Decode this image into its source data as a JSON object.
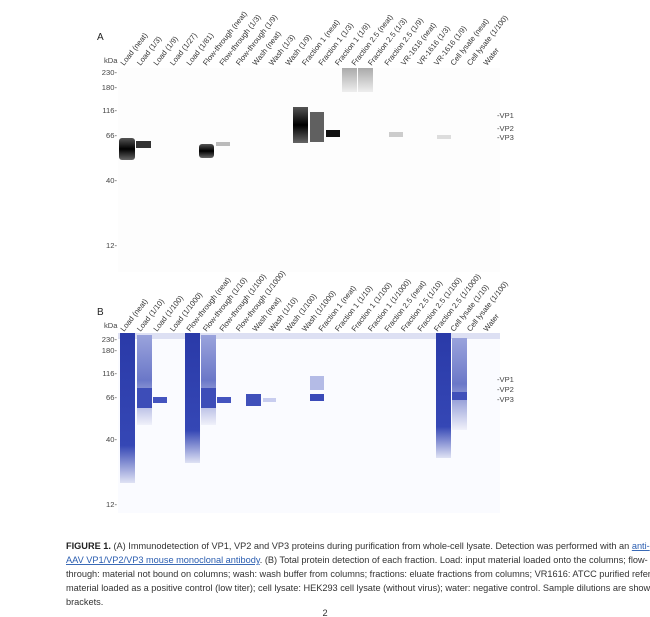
{
  "panels": [
    {
      "label": "A",
      "lanes": [
        "Load (neat)",
        "Load (1/3)",
        "Load (1/9)",
        "Load (1/27)",
        "Load (1/81)",
        "Flow-through (neat)",
        "Flow-through (1/3)",
        "Flow-through (1/9)",
        "Wash (neat)",
        "Wash (1/3)",
        "Wash (1/9)",
        "Fraction 1 (neat)",
        "Fraction 1 (1/3)",
        "Fraction 1 (1/9)",
        "Fraction 2.5 (neat)",
        "Fraction 2.5 (1/3)",
        "Fraction 2.5 (1/9)",
        "VR-1616 (neat)",
        "VR-1616 (1/3)",
        "VR-1616 (1/9)",
        "Cell lysate (neat)",
        "Cell lysate (1/100)",
        "Water"
      ],
      "markers_title": "kDa",
      "markers": [
        "230-",
        "180-",
        "116-",
        "66-",
        "40-",
        "12-"
      ],
      "bands": [
        "-VP1",
        "-VP2",
        "-VP3"
      ]
    },
    {
      "label": "B",
      "lanes": [
        "Load (neat)",
        "Load (1/10)",
        "Load (1/100)",
        "Load (1/1000)",
        "Flow-through (neat)",
        "Flow-through (1/10)",
        "Flow-through (1/100)",
        "Flow-through (1/1000)",
        "Wash (neat)",
        "Wash (1/10)",
        "Wash (1/100)",
        "Wash (1/1000)",
        "Fraction 1 (neat)",
        "Fraction 1 (1/10)",
        "Fraction 1 (1/100)",
        "Fraction 1 (1/1000)",
        "Fraction 2.5 (neat)",
        "Fraction 2.5 (1/10)",
        "Fraction 2.5 (1/100)",
        "Fraction 2.5 (1/1000)",
        "Cell lysate (1/10)",
        "Cell lysate (1/100)",
        "Water"
      ],
      "markers_title": "kDa",
      "markers": [
        "230-",
        "180-",
        "116-",
        "66-",
        "40-",
        "12-"
      ],
      "bands": [
        "-VP1",
        "-VP2",
        "-VP3"
      ]
    }
  ],
  "caption": {
    "lines": [
      [
        {
          "text": "FIGURE 1.",
          "style": "bold"
        },
        {
          "text": " (A) Immunodetection of VP1, VP2 and VP3 proteins during purification from whole-cell lysate. Detection was performed with an "
        },
        {
          "text": "anti-",
          "style": "link"
        }
      ],
      [
        {
          "text": "AAV VP1/VP2/VP3 mouse monoclonal antibody",
          "style": "link"
        },
        {
          "text": ". (B) Total protein detection of each fraction. Load: input material loaded onto the columns; flow-"
        }
      ],
      [
        {
          "text": "through: material not bound on columns; wash: wash buffer from columns; fractions: eluate fractions from columns; VR1616: ATCC purified reference"
        }
      ],
      [
        {
          "text": "material loaded as a positive control (low titer); cell lysate: HEK293 cell lysate (without virus); water: negative control. Sample dilutions are shown in"
        }
      ],
      [
        {
          "text": "brackets."
        }
      ]
    ]
  },
  "page_number": "2"
}
